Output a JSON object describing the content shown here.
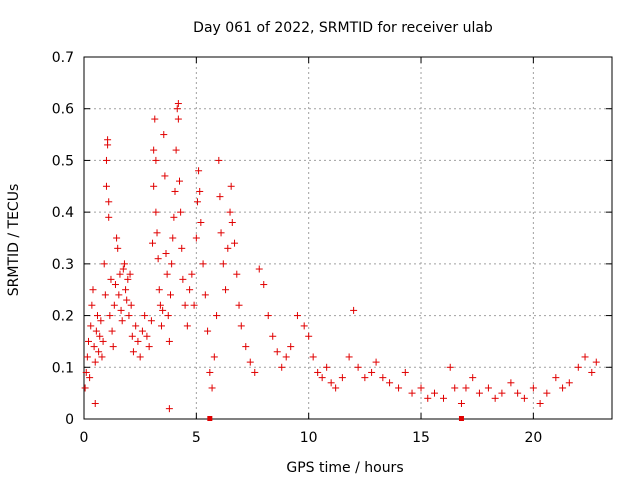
{
  "chart_data": {
    "type": "scatter",
    "title": "Day 061 of 2022, SRMTID for receiver ulab",
    "xlabel": "GPS time / hours",
    "ylabel": "SRMTID / TECUs",
    "xlim": [
      0,
      23.5
    ],
    "ylim": [
      0,
      0.7
    ],
    "xticks": [
      0,
      5,
      10,
      15,
      20
    ],
    "yticks": [
      0,
      0.1,
      0.2,
      0.3,
      0.4,
      0.5,
      0.6,
      0.7
    ],
    "xtick_labels": [
      "0",
      "5",
      "10",
      "15",
      "20"
    ],
    "ytick_labels": [
      "0",
      "0.1",
      "0.2",
      "0.3",
      "0.4",
      "0.5",
      "0.6",
      "0.7"
    ],
    "grid": true,
    "marker": "plus",
    "color": "#e00000",
    "series": [
      {
        "name": "SRMTID",
        "points": [
          [
            0.05,
            0.06
          ],
          [
            0.1,
            0.09
          ],
          [
            0.15,
            0.12
          ],
          [
            0.2,
            0.15
          ],
          [
            0.25,
            0.08
          ],
          [
            0.3,
            0.18
          ],
          [
            0.35,
            0.22
          ],
          [
            0.4,
            0.25
          ],
          [
            0.45,
            0.14
          ],
          [
            0.5,
            0.03
          ],
          [
            0.5,
            0.11
          ],
          [
            0.55,
            0.17
          ],
          [
            0.6,
            0.2
          ],
          [
            0.65,
            0.13
          ],
          [
            0.7,
            0.16
          ],
          [
            0.75,
            0.19
          ],
          [
            0.8,
            0.12
          ],
          [
            0.85,
            0.15
          ],
          [
            0.9,
            0.3
          ],
          [
            0.95,
            0.24
          ],
          [
            1.0,
            0.45
          ],
          [
            1.0,
            0.5
          ],
          [
            1.05,
            0.54
          ],
          [
            1.05,
            0.53
          ],
          [
            1.1,
            0.42
          ],
          [
            1.1,
            0.39
          ],
          [
            1.15,
            0.2
          ],
          [
            1.2,
            0.27
          ],
          [
            1.25,
            0.17
          ],
          [
            1.3,
            0.14
          ],
          [
            1.35,
            0.22
          ],
          [
            1.4,
            0.26
          ],
          [
            1.45,
            0.35
          ],
          [
            1.5,
            0.33
          ],
          [
            1.55,
            0.24
          ],
          [
            1.6,
            0.28
          ],
          [
            1.65,
            0.21
          ],
          [
            1.7,
            0.19
          ],
          [
            1.75,
            0.29
          ],
          [
            1.8,
            0.3
          ],
          [
            1.85,
            0.25
          ],
          [
            1.9,
            0.23
          ],
          [
            1.95,
            0.27
          ],
          [
            2.0,
            0.2
          ],
          [
            2.05,
            0.28
          ],
          [
            2.1,
            0.22
          ],
          [
            2.15,
            0.16
          ],
          [
            2.2,
            0.13
          ],
          [
            2.3,
            0.18
          ],
          [
            2.4,
            0.15
          ],
          [
            2.5,
            0.12
          ],
          [
            2.6,
            0.17
          ],
          [
            2.7,
            0.2
          ],
          [
            2.8,
            0.16
          ],
          [
            2.9,
            0.14
          ],
          [
            3.0,
            0.19
          ],
          [
            3.05,
            0.34
          ],
          [
            3.1,
            0.45
          ],
          [
            3.1,
            0.52
          ],
          [
            3.15,
            0.58
          ],
          [
            3.2,
            0.5
          ],
          [
            3.2,
            0.4
          ],
          [
            3.25,
            0.36
          ],
          [
            3.3,
            0.31
          ],
          [
            3.35,
            0.25
          ],
          [
            3.4,
            0.22
          ],
          [
            3.45,
            0.18
          ],
          [
            3.5,
            0.21
          ],
          [
            3.55,
            0.55
          ],
          [
            3.6,
            0.47
          ],
          [
            3.65,
            0.32
          ],
          [
            3.7,
            0.28
          ],
          [
            3.75,
            0.2
          ],
          [
            3.8,
            0.15
          ],
          [
            3.8,
            0.02
          ],
          [
            3.85,
            0.24
          ],
          [
            3.9,
            0.3
          ],
          [
            3.95,
            0.35
          ],
          [
            4.0,
            0.39
          ],
          [
            4.05,
            0.44
          ],
          [
            4.1,
            0.52
          ],
          [
            4.15,
            0.6
          ],
          [
            4.2,
            0.61
          ],
          [
            4.2,
            0.58
          ],
          [
            4.25,
            0.46
          ],
          [
            4.3,
            0.4
          ],
          [
            4.35,
            0.33
          ],
          [
            4.4,
            0.27
          ],
          [
            4.5,
            0.22
          ],
          [
            4.6,
            0.18
          ],
          [
            4.7,
            0.25
          ],
          [
            4.8,
            0.28
          ],
          [
            4.9,
            0.22
          ],
          [
            5.0,
            0.35
          ],
          [
            5.05,
            0.42
          ],
          [
            5.1,
            0.48
          ],
          [
            5.15,
            0.44
          ],
          [
            5.2,
            0.38
          ],
          [
            5.3,
            0.3
          ],
          [
            5.4,
            0.24
          ],
          [
            5.5,
            0.17
          ],
          [
            5.6,
            0.09
          ],
          [
            5.7,
            0.06
          ],
          [
            5.8,
            0.12
          ],
          [
            5.9,
            0.2
          ],
          [
            6.0,
            0.5
          ],
          [
            6.05,
            0.43
          ],
          [
            6.1,
            0.36
          ],
          [
            6.2,
            0.3
          ],
          [
            6.3,
            0.25
          ],
          [
            6.4,
            0.33
          ],
          [
            6.5,
            0.4
          ],
          [
            6.55,
            0.45
          ],
          [
            6.6,
            0.38
          ],
          [
            6.7,
            0.34
          ],
          [
            6.8,
            0.28
          ],
          [
            6.9,
            0.22
          ],
          [
            7.0,
            0.18
          ],
          [
            7.2,
            0.14
          ],
          [
            7.4,
            0.11
          ],
          [
            7.6,
            0.09
          ],
          [
            7.8,
            0.29
          ],
          [
            8.0,
            0.26
          ],
          [
            8.2,
            0.2
          ],
          [
            8.4,
            0.16
          ],
          [
            8.6,
            0.13
          ],
          [
            8.8,
            0.1
          ],
          [
            9.0,
            0.12
          ],
          [
            9.2,
            0.14
          ],
          [
            9.5,
            0.2
          ],
          [
            9.8,
            0.18
          ],
          [
            10.0,
            0.16
          ],
          [
            10.2,
            0.12
          ],
          [
            10.4,
            0.09
          ],
          [
            10.6,
            0.08
          ],
          [
            10.8,
            0.1
          ],
          [
            11.0,
            0.07
          ],
          [
            11.2,
            0.06
          ],
          [
            11.5,
            0.08
          ],
          [
            11.8,
            0.12
          ],
          [
            12.0,
            0.21
          ],
          [
            12.2,
            0.1
          ],
          [
            12.5,
            0.08
          ],
          [
            12.8,
            0.09
          ],
          [
            13.0,
            0.11
          ],
          [
            13.3,
            0.08
          ],
          [
            13.6,
            0.07
          ],
          [
            14.0,
            0.06
          ],
          [
            14.3,
            0.09
          ],
          [
            14.6,
            0.05
          ],
          [
            15.0,
            0.06
          ],
          [
            15.3,
            0.04
          ],
          [
            15.6,
            0.05
          ],
          [
            16.0,
            0.04
          ],
          [
            16.3,
            0.1
          ],
          [
            16.5,
            0.06
          ],
          [
            16.8,
            0.03
          ],
          [
            17.0,
            0.06
          ],
          [
            17.3,
            0.08
          ],
          [
            17.6,
            0.05
          ],
          [
            18.0,
            0.06
          ],
          [
            18.3,
            0.04
          ],
          [
            18.6,
            0.05
          ],
          [
            19.0,
            0.07
          ],
          [
            19.3,
            0.05
          ],
          [
            19.6,
            0.04
          ],
          [
            20.0,
            0.06
          ],
          [
            20.3,
            0.03
          ],
          [
            20.6,
            0.05
          ],
          [
            21.0,
            0.08
          ],
          [
            21.3,
            0.06
          ],
          [
            21.6,
            0.07
          ],
          [
            22.0,
            0.1
          ],
          [
            22.3,
            0.12
          ],
          [
            22.6,
            0.09
          ],
          [
            22.8,
            0.11
          ]
        ],
        "zero_markers": [
          5.6,
          16.8
        ]
      }
    ]
  }
}
